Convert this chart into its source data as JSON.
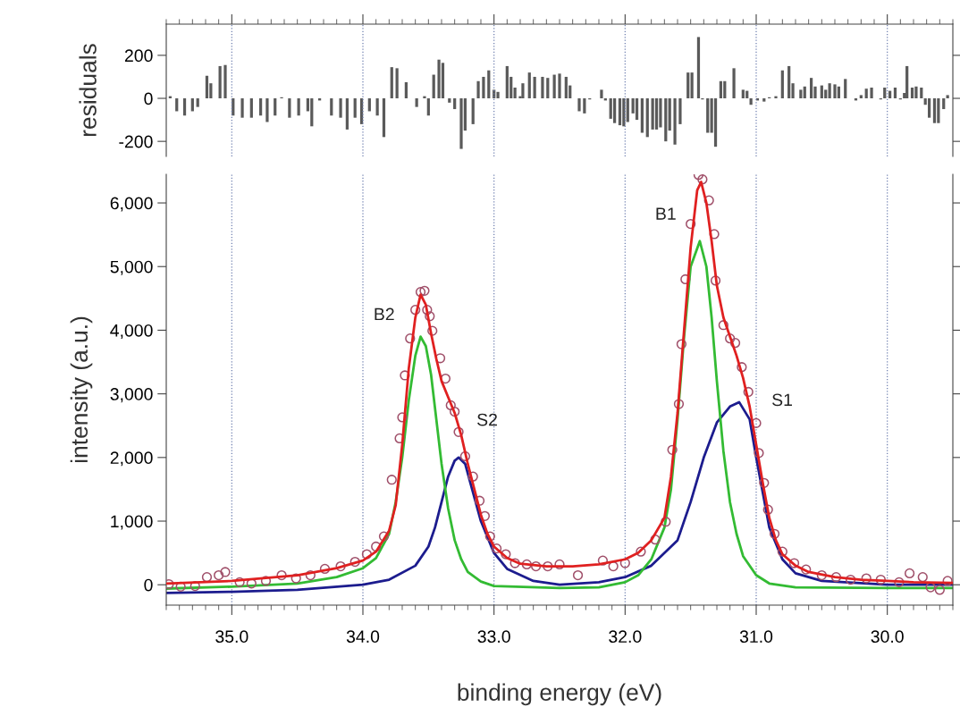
{
  "chart_data": [
    {
      "type": "bar",
      "ylabel": "residuals",
      "color": "#5a5a5a",
      "grid": "x",
      "tick_labels": "y",
      "x": [
        35.47,
        35.42,
        35.36,
        35.3,
        35.26,
        35.19,
        35.16,
        35.09,
        35.05,
        34.99,
        34.92,
        34.85,
        34.78,
        34.73,
        34.67,
        34.62,
        34.56,
        34.49,
        34.42,
        34.39,
        34.33,
        34.24,
        34.17,
        34.12,
        34.06,
        34.01,
        33.95,
        33.89,
        33.84,
        33.78,
        33.74,
        33.67,
        33.59,
        33.53,
        33.5,
        33.46,
        33.42,
        33.39,
        33.34,
        33.3,
        33.25,
        33.22,
        33.16,
        33.12,
        33.08,
        33.04,
        33.0,
        32.97,
        32.9,
        32.87,
        32.84,
        32.8,
        32.78,
        32.73,
        32.69,
        32.63,
        32.59,
        32.54,
        32.5,
        32.45,
        32.42,
        32.35,
        32.31,
        32.27,
        32.18,
        32.15,
        32.11,
        32.08,
        32.04,
        32.01,
        31.98,
        31.94,
        31.91,
        31.87,
        31.83,
        31.79,
        31.76,
        31.73,
        31.69,
        31.66,
        31.62,
        31.58,
        31.52,
        31.49,
        31.44,
        31.41,
        31.37,
        31.34,
        31.31,
        31.27,
        31.24,
        31.17,
        31.1,
        31.07,
        31.04,
        30.99,
        30.94,
        30.9,
        30.85,
        30.8,
        30.75,
        30.72,
        30.66,
        30.63,
        30.58,
        30.55,
        30.5,
        30.47,
        30.44,
        30.4,
        30.37,
        30.32,
        30.24,
        30.2,
        30.16,
        30.12,
        30.05,
        30.02,
        29.98,
        29.94,
        29.9,
        29.87,
        29.85,
        29.81,
        29.78,
        29.74,
        29.71,
        29.68,
        29.64,
        29.61,
        29.57,
        29.54
      ],
      "values": [
        10,
        -60,
        -80,
        -60,
        -40,
        105,
        70,
        150,
        155,
        -80,
        -90,
        -90,
        -80,
        -110,
        -80,
        5,
        -90,
        -80,
        -60,
        -130,
        -10,
        -80,
        -90,
        -145,
        -90,
        -120,
        -60,
        -80,
        -180,
        145,
        140,
        75,
        -40,
        10,
        -80,
        110,
        180,
        165,
        -20,
        -50,
        -235,
        -150,
        -120,
        80,
        100,
        130,
        40,
        30,
        150,
        100,
        50,
        10,
        70,
        120,
        100,
        100,
        95,
        110,
        115,
        100,
        60,
        -60,
        -70,
        -5,
        40,
        -10,
        -95,
        -115,
        -125,
        -130,
        -110,
        -70,
        -100,
        -160,
        -180,
        -145,
        -145,
        -135,
        -200,
        -150,
        -215,
        -120,
        120,
        120,
        285,
        -5,
        -160,
        -160,
        -225,
        80,
        80,
        140,
        40,
        35,
        -30,
        -10,
        -15,
        5,
        10,
        130,
        150,
        70,
        40,
        55,
        95,
        55,
        60,
        40,
        70,
        65,
        55,
        90,
        -10,
        15,
        45,
        50,
        -5,
        50,
        35,
        50,
        -5,
        25,
        150,
        50,
        55,
        50,
        -30,
        -90,
        -115,
        -115,
        -50,
        15
      ],
      "xlim": [
        35.5,
        29.5
      ],
      "ylim": [
        -270,
        345
      ],
      "yticks": [
        -200,
        0,
        200
      ],
      "xticks": [
        {
          "value": 35.5,
          "label": null
        },
        {
          "value": 35.4,
          "label": null
        },
        {
          "value": 35.3,
          "label": null
        },
        {
          "value": 35.2,
          "label": null
        },
        {
          "value": 35.1,
          "label": null
        },
        {
          "value": 35,
          "label": null
        },
        {
          "value": 34.9,
          "label": null
        },
        {
          "value": 34.8,
          "label": null
        },
        {
          "value": 34.7,
          "label": null
        },
        {
          "value": 34.6,
          "label": null
        },
        {
          "value": 34.5,
          "label": null
        },
        {
          "value": 34.4,
          "label": null
        },
        {
          "value": 34.3,
          "label": null
        },
        {
          "value": 34.2,
          "label": null
        },
        {
          "value": 34.1,
          "label": null
        },
        {
          "value": 34,
          "label": null
        },
        {
          "value": 33.9,
          "label": null
        },
        {
          "value": 33.8,
          "label": null
        },
        {
          "value": 33.7,
          "label": null
        },
        {
          "value": 33.6,
          "label": null
        },
        {
          "value": 33.5,
          "label": null
        },
        {
          "value": 33.4,
          "label": null
        },
        {
          "value": 33.3,
          "label": null
        },
        {
          "value": 33.2,
          "label": null
        },
        {
          "value": 33.1,
          "label": null
        },
        {
          "value": 33,
          "label": null
        },
        {
          "value": 32.9,
          "label": null
        },
        {
          "value": 32.8,
          "label": null
        },
        {
          "value": 32.7,
          "label": null
        },
        {
          "value": 32.6,
          "label": null
        },
        {
          "value": 32.5,
          "label": null
        },
        {
          "value": 32.4,
          "label": null
        },
        {
          "value": 32.3,
          "label": null
        },
        {
          "value": 32.2,
          "label": null
        },
        {
          "value": 32.1,
          "label": null
        },
        {
          "value": 32,
          "label": null
        },
        {
          "value": 31.9,
          "label": null
        },
        {
          "value": 31.8,
          "label": null
        },
        {
          "value": 31.7,
          "label": null
        },
        {
          "value": 31.6,
          "label": null
        },
        {
          "value": 31.5,
          "label": null
        },
        {
          "value": 31.4,
          "label": null
        },
        {
          "value": 31.3,
          "label": null
        },
        {
          "value": 31.2,
          "label": null
        },
        {
          "value": 31.1,
          "label": null
        },
        {
          "value": 31,
          "label": null
        },
        {
          "value": 30.9,
          "label": null
        },
        {
          "value": 30.8,
          "label": null
        },
        {
          "value": 30.7,
          "label": null
        },
        {
          "value": 30.6,
          "label": null
        },
        {
          "value": 30.5,
          "label": null
        },
        {
          "value": 30.4,
          "label": null
        },
        {
          "value": 30.3,
          "label": null
        },
        {
          "value": 30.2,
          "label": null
        },
        {
          "value": 30.1,
          "label": null
        },
        {
          "value": 30,
          "label": null
        },
        {
          "value": 29.9,
          "label": null
        },
        {
          "value": 29.8,
          "label": null
        },
        {
          "value": 29.7,
          "label": null
        },
        {
          "value": 29.6,
          "label": null
        },
        {
          "value": 29.5,
          "label": null
        }
      ]
    },
    {
      "type": "line",
      "xlabel": "binding energy (eV)",
      "ylabel": "intensity (a.u.)",
      "grid": "x",
      "xlim": [
        35.5,
        29.5
      ],
      "ylim": [
        -320,
        6450
      ],
      "yticks": [
        {
          "value": 0,
          "label": "0"
        },
        {
          "value": 1000,
          "label": "1,000"
        },
        {
          "value": 2000,
          "label": "2,000"
        },
        {
          "value": 3000,
          "label": "3,000"
        },
        {
          "value": 4000,
          "label": "4,000"
        },
        {
          "value": 5000,
          "label": "5,000"
        },
        {
          "value": 6000,
          "label": "6,000"
        }
      ],
      "xticks": [
        {
          "value": 35.5,
          "label": null
        },
        {
          "value": 35.4,
          "label": null
        },
        {
          "value": 35.3,
          "label": null
        },
        {
          "value": 35.2,
          "label": null
        },
        {
          "value": 35.1,
          "label": null
        },
        {
          "value": 35,
          "label": "35.0"
        },
        {
          "value": 34.9,
          "label": null
        },
        {
          "value": 34.8,
          "label": null
        },
        {
          "value": 34.7,
          "label": null
        },
        {
          "value": 34.6,
          "label": null
        },
        {
          "value": 34.5,
          "label": null
        },
        {
          "value": 34.4,
          "label": null
        },
        {
          "value": 34.3,
          "label": null
        },
        {
          "value": 34.2,
          "label": null
        },
        {
          "value": 34.1,
          "label": null
        },
        {
          "value": 34,
          "label": "34.0"
        },
        {
          "value": 33.9,
          "label": null
        },
        {
          "value": 33.8,
          "label": null
        },
        {
          "value": 33.7,
          "label": null
        },
        {
          "value": 33.6,
          "label": null
        },
        {
          "value": 33.5,
          "label": null
        },
        {
          "value": 33.4,
          "label": null
        },
        {
          "value": 33.3,
          "label": null
        },
        {
          "value": 33.2,
          "label": null
        },
        {
          "value": 33.1,
          "label": null
        },
        {
          "value": 33,
          "label": "33.0"
        },
        {
          "value": 32.9,
          "label": null
        },
        {
          "value": 32.8,
          "label": null
        },
        {
          "value": 32.7,
          "label": null
        },
        {
          "value": 32.6,
          "label": null
        },
        {
          "value": 32.5,
          "label": null
        },
        {
          "value": 32.4,
          "label": null
        },
        {
          "value": 32.3,
          "label": null
        },
        {
          "value": 32.2,
          "label": null
        },
        {
          "value": 32.1,
          "label": null
        },
        {
          "value": 32,
          "label": "32.0"
        },
        {
          "value": 31.9,
          "label": null
        },
        {
          "value": 31.8,
          "label": null
        },
        {
          "value": 31.7,
          "label": null
        },
        {
          "value": 31.6,
          "label": null
        },
        {
          "value": 31.5,
          "label": null
        },
        {
          "value": 31.4,
          "label": null
        },
        {
          "value": 31.3,
          "label": null
        },
        {
          "value": 31.2,
          "label": null
        },
        {
          "value": 31.1,
          "label": null
        },
        {
          "value": 31,
          "label": "31.0"
        },
        {
          "value": 30.9,
          "label": null
        },
        {
          "value": 30.8,
          "label": null
        },
        {
          "value": 30.7,
          "label": null
        },
        {
          "value": 30.6,
          "label": null
        },
        {
          "value": 30.5,
          "label": null
        },
        {
          "value": 30.4,
          "label": null
        },
        {
          "value": 30.3,
          "label": null
        },
        {
          "value": 30.2,
          "label": null
        },
        {
          "value": 30.1,
          "label": null
        },
        {
          "value": 30,
          "label": "30.0"
        },
        {
          "value": 29.9,
          "label": null
        },
        {
          "value": 29.8,
          "label": null
        },
        {
          "value": 29.7,
          "label": null
        },
        {
          "value": 29.6,
          "label": null
        },
        {
          "value": 29.5,
          "label": null
        }
      ],
      "annotations": [
        "B2",
        "S2",
        "B1",
        "S1"
      ],
      "series": [
        {
          "type": "line",
          "color": "#1c1c8e",
          "marker": "none",
          "x": [
            35.5,
            35.0,
            34.5,
            34.0,
            33.8,
            33.6,
            33.5,
            33.45,
            33.4,
            33.35,
            33.3,
            33.27,
            33.22,
            33.18,
            33.1,
            33.0,
            32.9,
            32.7,
            32.5,
            32.2,
            32.0,
            31.8,
            31.6,
            31.5,
            31.4,
            31.3,
            31.2,
            31.13,
            31.05,
            31.0,
            30.95,
            30.9,
            30.8,
            30.7,
            30.5,
            30.0,
            29.5
          ],
          "values": [
            -130,
            -110,
            -80,
            0,
            80,
            300,
            600,
            900,
            1300,
            1700,
            1950,
            2000,
            1900,
            1600,
            1000,
            500,
            250,
            60,
            0,
            40,
            120,
            300,
            700,
            1300,
            2000,
            2550,
            2800,
            2870,
            2600,
            2000,
            1450,
            900,
            400,
            180,
            60,
            0,
            0
          ]
        },
        {
          "type": "line",
          "color": "#33bb33",
          "marker": "none",
          "x": [
            35.5,
            35.0,
            34.5,
            34.2,
            34.0,
            33.9,
            33.8,
            33.75,
            33.7,
            33.65,
            33.6,
            33.56,
            33.52,
            33.48,
            33.44,
            33.4,
            33.35,
            33.3,
            33.25,
            33.2,
            33.1,
            33.0,
            32.5,
            32.2,
            32.0,
            31.9,
            31.8,
            31.7,
            31.65,
            31.6,
            31.55,
            31.5,
            31.43,
            31.38,
            31.34,
            31.3,
            31.25,
            31.2,
            31.15,
            31.1,
            31.0,
            30.9,
            30.7,
            30.0,
            29.5
          ],
          "values": [
            -60,
            -30,
            20,
            120,
            260,
            420,
            800,
            1300,
            2000,
            2900,
            3600,
            3900,
            3750,
            3300,
            2600,
            1900,
            1200,
            700,
            400,
            200,
            50,
            -20,
            -50,
            -40,
            40,
            150,
            400,
            900,
            1500,
            2600,
            3900,
            5000,
            5400,
            5000,
            4200,
            3200,
            2100,
            1300,
            800,
            450,
            150,
            20,
            -40,
            -50,
            -50
          ]
        },
        {
          "type": "scatter",
          "color": "#a0506a",
          "marker": "circle",
          "x": [
            35.48,
            35.39,
            35.28,
            35.19,
            35.1,
            35.05,
            34.94,
            34.85,
            34.74,
            34.62,
            34.51,
            34.4,
            34.29,
            34.17,
            34.06,
            33.97,
            33.9,
            33.84,
            33.78,
            33.72,
            33.7,
            33.68,
            33.64,
            33.6,
            33.56,
            33.53,
            33.51,
            33.49,
            33.47,
            33.41,
            33.37,
            33.33,
            33.3,
            33.27,
            33.22,
            33.16,
            33.11,
            33.07,
            33.03,
            32.98,
            32.91,
            32.84,
            32.75,
            32.68,
            32.59,
            32.5,
            32.36,
            32.17,
            32.09,
            32.0,
            31.88,
            31.77,
            31.69,
            31.64,
            31.59,
            31.57,
            31.54,
            31.5,
            31.44,
            31.41,
            31.36,
            31.32,
            31.31,
            31.25,
            31.2,
            31.16,
            31.11,
            31.06,
            31.0,
            30.98,
            30.94,
            30.91,
            30.86,
            30.8,
            30.71,
            30.62,
            30.5,
            30.39,
            30.28,
            30.16,
            30.05,
            29.91,
            29.83,
            29.73,
            29.67,
            29.6,
            29.54
          ],
          "values": [
            10,
            -30,
            -20,
            120,
            150,
            200,
            40,
            20,
            60,
            150,
            100,
            150,
            250,
            290,
            360,
            480,
            600,
            760,
            1650,
            2300,
            2630,
            3290,
            3870,
            4320,
            4600,
            4620,
            4320,
            4220,
            3990,
            3560,
            3240,
            2820,
            2720,
            2400,
            2020,
            1700,
            1320,
            1080,
            760,
            570,
            480,
            340,
            320,
            290,
            290,
            320,
            150,
            380,
            290,
            340,
            520,
            710,
            990,
            2120,
            2840,
            3780,
            4800,
            5670,
            6440,
            6370,
            6040,
            5510,
            4780,
            4080,
            3870,
            3800,
            3420,
            3030,
            2540,
            2070,
            1600,
            1180,
            800,
            520,
            340,
            240,
            150,
            120,
            80,
            100,
            80,
            40,
            180,
            120,
            -40,
            -80,
            60
          ]
        },
        {
          "type": "line",
          "color": "#e02020",
          "marker": "none",
          "x": [
            35.5,
            35.0,
            34.5,
            34.2,
            34.0,
            33.9,
            33.8,
            33.75,
            33.7,
            33.65,
            33.6,
            33.56,
            33.52,
            33.48,
            33.44,
            33.4,
            33.35,
            33.3,
            33.25,
            33.2,
            33.15,
            33.1,
            33.05,
            33.0,
            32.9,
            32.8,
            32.6,
            32.4,
            32.2,
            32.0,
            31.9,
            31.8,
            31.7,
            31.65,
            31.6,
            31.55,
            31.5,
            31.45,
            31.42,
            31.38,
            31.34,
            31.3,
            31.25,
            31.2,
            31.15,
            31.1,
            31.05,
            31.0,
            30.95,
            30.9,
            30.85,
            30.8,
            30.7,
            30.6,
            30.4,
            30.2,
            30.0,
            29.8,
            29.5
          ],
          "values": [
            20,
            60,
            150,
            260,
            380,
            520,
            850,
            1250,
            2200,
            3400,
            4200,
            4560,
            4400,
            3950,
            3550,
            3200,
            2950,
            2700,
            2350,
            1900,
            1500,
            1100,
            800,
            600,
            420,
            330,
            290,
            290,
            320,
            400,
            500,
            700,
            1050,
            1700,
            2700,
            4000,
            5300,
            6200,
            6330,
            6000,
            5400,
            4700,
            4200,
            3900,
            3600,
            3250,
            2800,
            2200,
            1600,
            1050,
            700,
            480,
            300,
            200,
            120,
            80,
            60,
            40,
            30
          ]
        }
      ]
    }
  ]
}
